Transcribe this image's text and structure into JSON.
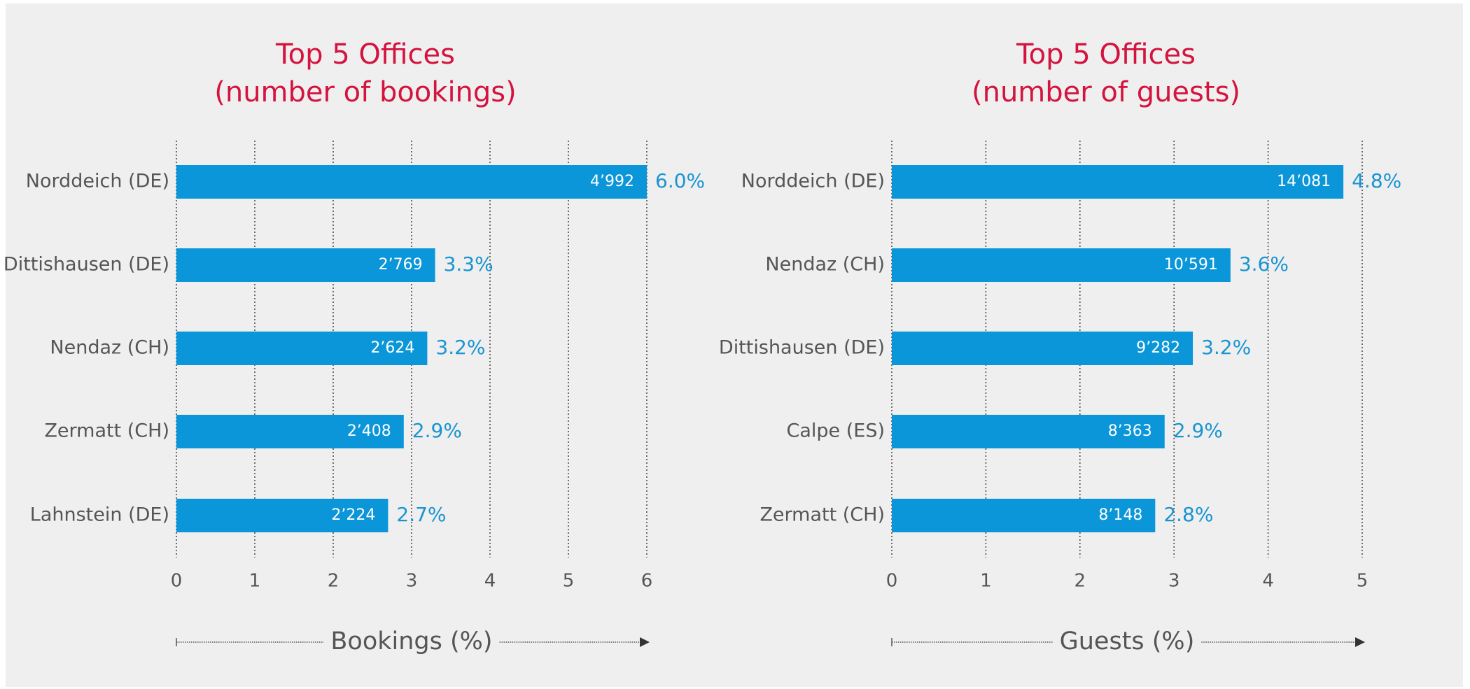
{
  "chart_data": [
    {
      "type": "hbar",
      "title": [
        "Top 5 Offices",
        "(number of bookings)"
      ],
      "categories": [
        "Norddeich (DE)",
        "Dittishausen (DE)",
        "Nendaz (CH)",
        "Zermatt (CH)",
        "Lahnstein (DE)"
      ],
      "values": [
        6.0,
        3.3,
        3.2,
        2.9,
        2.7
      ],
      "value_labels": [
        "6.0%",
        "3.3%",
        "3.2%",
        "2.9%",
        "2.7%"
      ],
      "bar_labels": [
        "4’992",
        "2’769",
        "2’624",
        "2’408",
        "2’224"
      ],
      "color": "#0a96d9",
      "xlim": [
        0,
        6
      ],
      "xticks": [
        0,
        1,
        2,
        3,
        4,
        5,
        6
      ],
      "grid": true,
      "x_label": "Bookings (%)"
    },
    {
      "type": "hbar",
      "title": [
        "Top 5 Offices",
        "(number of guests)"
      ],
      "categories": [
        "Norddeich (DE)",
        "Nendaz (CH)",
        "Dittishausen (DE)",
        "Calpe (ES)",
        "Zermatt (CH)"
      ],
      "values": [
        4.8,
        3.6,
        3.2,
        2.9,
        2.8
      ],
      "value_labels": [
        "4.8%",
        "3.6%",
        "3.2%",
        "2.9%",
        "2.8%"
      ],
      "bar_labels": [
        "14’081",
        "10’591",
        "9’282",
        "8’363",
        "8’148"
      ],
      "color": "#0a96d9",
      "xlim": [
        0,
        5
      ],
      "xticks": [
        0,
        1,
        2,
        3,
        4,
        5
      ],
      "grid": true,
      "x_label": "Guests (%)"
    }
  ]
}
